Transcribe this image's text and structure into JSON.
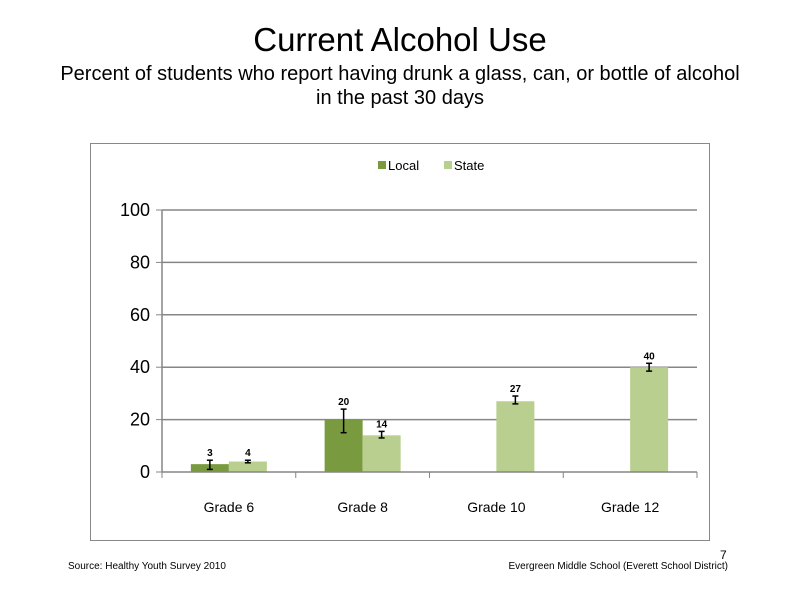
{
  "slide": {
    "title": "Current Alcohol Use",
    "subtitle": "Percent of students who report having drunk a glass, can, or bottle of alcohol in the past 30 days",
    "source": "Source: Healthy Youth Survey 2010",
    "school": "Evergreen Middle School (Everett School District)",
    "page_number": "7"
  },
  "chart_data": {
    "type": "bar",
    "categories": [
      "Grade 6",
      "Grade 8",
      "Grade 10",
      "Grade 12"
    ],
    "series": [
      {
        "name": "Local",
        "color": "#7a9a3f",
        "values": [
          3,
          20,
          null,
          null
        ],
        "labels": [
          "3",
          "20",
          "",
          ""
        ],
        "error_low": [
          1,
          15,
          null,
          null
        ],
        "error_high": [
          4.5,
          24,
          null,
          null
        ]
      },
      {
        "name": "State",
        "color": "#b9cf8f",
        "values": [
          4,
          14,
          27,
          40
        ],
        "labels": [
          "4",
          "14",
          "27",
          "40"
        ],
        "error_low": [
          3.5,
          13,
          26,
          38.5
        ],
        "error_high": [
          4.5,
          15.5,
          29,
          41.5
        ]
      }
    ],
    "ylim": [
      0,
      100
    ],
    "yticks": [
      "0",
      "20",
      "40",
      "60",
      "80",
      "100"
    ],
    "ytick_values": [
      0,
      20,
      40,
      60,
      80,
      100
    ],
    "grid": true,
    "legend_position": "top-center"
  }
}
